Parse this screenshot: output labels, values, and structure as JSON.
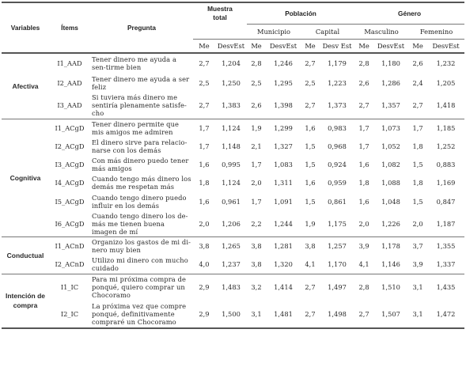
{
  "headers": {
    "variables": "Variables",
    "items": "Ítems",
    "question": "Pregunta",
    "sample_total_line1": "Muestra",
    "sample_total_line2": "total",
    "population": "Población",
    "gender": "Género",
    "municipality": "Municipio",
    "capital": "Capital",
    "male": "Masculino",
    "female": "Femenino",
    "me": "Me",
    "desvest": "DesvEst",
    "desv_est": "Desv Est"
  },
  "groups": [
    {
      "name": "Afectiva",
      "rows": [
        {
          "item": "I1_AAD",
          "question": "Tener dinero me ayuda a sen-tirme bien",
          "values": [
            "2,7",
            "1,204",
            "2,8",
            "1,246",
            "2,7",
            "1,179",
            "2,8",
            "1,180",
            "2,6",
            "1,232"
          ]
        },
        {
          "item": "I2_AAD",
          "question": "Tener dinero me ayuda a ser feliz",
          "values": [
            "2,5",
            "1,250",
            "2,5",
            "1,295",
            "2,5",
            "1,223",
            "2,6",
            "1,286",
            "2,4",
            "1,205"
          ]
        },
        {
          "item": "I3_AAD",
          "question": "Si tuviera más dinero me sentiría plenamente satisfe-cho",
          "values": [
            "2,7",
            "1,383",
            "2,6",
            "1,398",
            "2,7",
            "1,373",
            "2,7",
            "1,357",
            "2,7",
            "1,418"
          ]
        }
      ]
    },
    {
      "name": "Cognitiva",
      "rows": [
        {
          "item": "I1_ACgD",
          "question": "Tener dinero permite que mis amigos me admiren",
          "values": [
            "1,7",
            "1,124",
            "1,9",
            "1,299",
            "1,6",
            "0,983",
            "1,7",
            "1,073",
            "1,7",
            "1,185"
          ]
        },
        {
          "item": "I2_ACgD",
          "question": "El dinero sirve para relacio-narse con los demás",
          "values": [
            "1,7",
            "1,148",
            "2,1",
            "1,327",
            "1,5",
            "0,968",
            "1,7",
            "1,052",
            "1,8",
            "1,252"
          ]
        },
        {
          "item": "I3_ACgD",
          "question": "Con más dinero puedo tener más amigos",
          "values": [
            "1,6",
            "0,995",
            "1,7",
            "1,083",
            "1,5",
            "0,924",
            "1,6",
            "1,082",
            "1,5",
            "0,883"
          ]
        },
        {
          "item": "I4_ACgD",
          "question": "Cuando tengo más dinero los demás me respetan más",
          "values": [
            "1,8",
            "1,124",
            "2,0",
            "1,311",
            "1,6",
            "0,959",
            "1,8",
            "1,088",
            "1,8",
            "1,169"
          ]
        },
        {
          "item": "I5_ACgD",
          "question": "Cuando tengo dinero puedo influir en los demás",
          "values": [
            "1,6",
            "0,961",
            "1,7",
            "1,091",
            "1,5",
            "0,861",
            "1,6",
            "1,048",
            "1,5",
            "0,847"
          ]
        },
        {
          "item": "I6_ACgD",
          "question": "Cuando tengo dinero los de-más me tienen buena imagen de mí",
          "values": [
            "2,0",
            "1,206",
            "2,2",
            "1,244",
            "1,9",
            "1,175",
            "2,0",
            "1,226",
            "2,0",
            "1,187"
          ]
        }
      ]
    },
    {
      "name": "Conductual",
      "rows": [
        {
          "item": "I1_ACnD",
          "question": "Organizo los gastos de mi di-nero muy bien",
          "values": [
            "3,8",
            "1,265",
            "3,8",
            "1,281",
            "3,8",
            "1,257",
            "3,9",
            "1,178",
            "3,7",
            "1,355"
          ]
        },
        {
          "item": "I2_ACnD",
          "question": "Utilizo mi dinero con mucho cuidado",
          "values": [
            "4,0",
            "1,237",
            "3,8",
            "1,320",
            "4,1",
            "1,170",
            "4,1",
            "1,146",
            "3,9",
            "1,337"
          ]
        }
      ]
    },
    {
      "name": "Intención de compra",
      "rows": [
        {
          "item": "I1_IC",
          "question": "Para mi próxima compra de ponqué, quiero comprar un Chocoramo",
          "values": [
            "2,9",
            "1,483",
            "3,2",
            "1,414",
            "2,7",
            "1,497",
            "2,8",
            "1,510",
            "3,1",
            "1,435"
          ]
        },
        {
          "item": "I2_IC",
          "question": "La próxima vez que compre ponqué, definitivamente compraré un Chocoramo",
          "values": [
            "2,9",
            "1,500",
            "3,1",
            "1,481",
            "2,7",
            "1,498",
            "2,7",
            "1,507",
            "3,1",
            "1,472"
          ]
        }
      ]
    }
  ]
}
